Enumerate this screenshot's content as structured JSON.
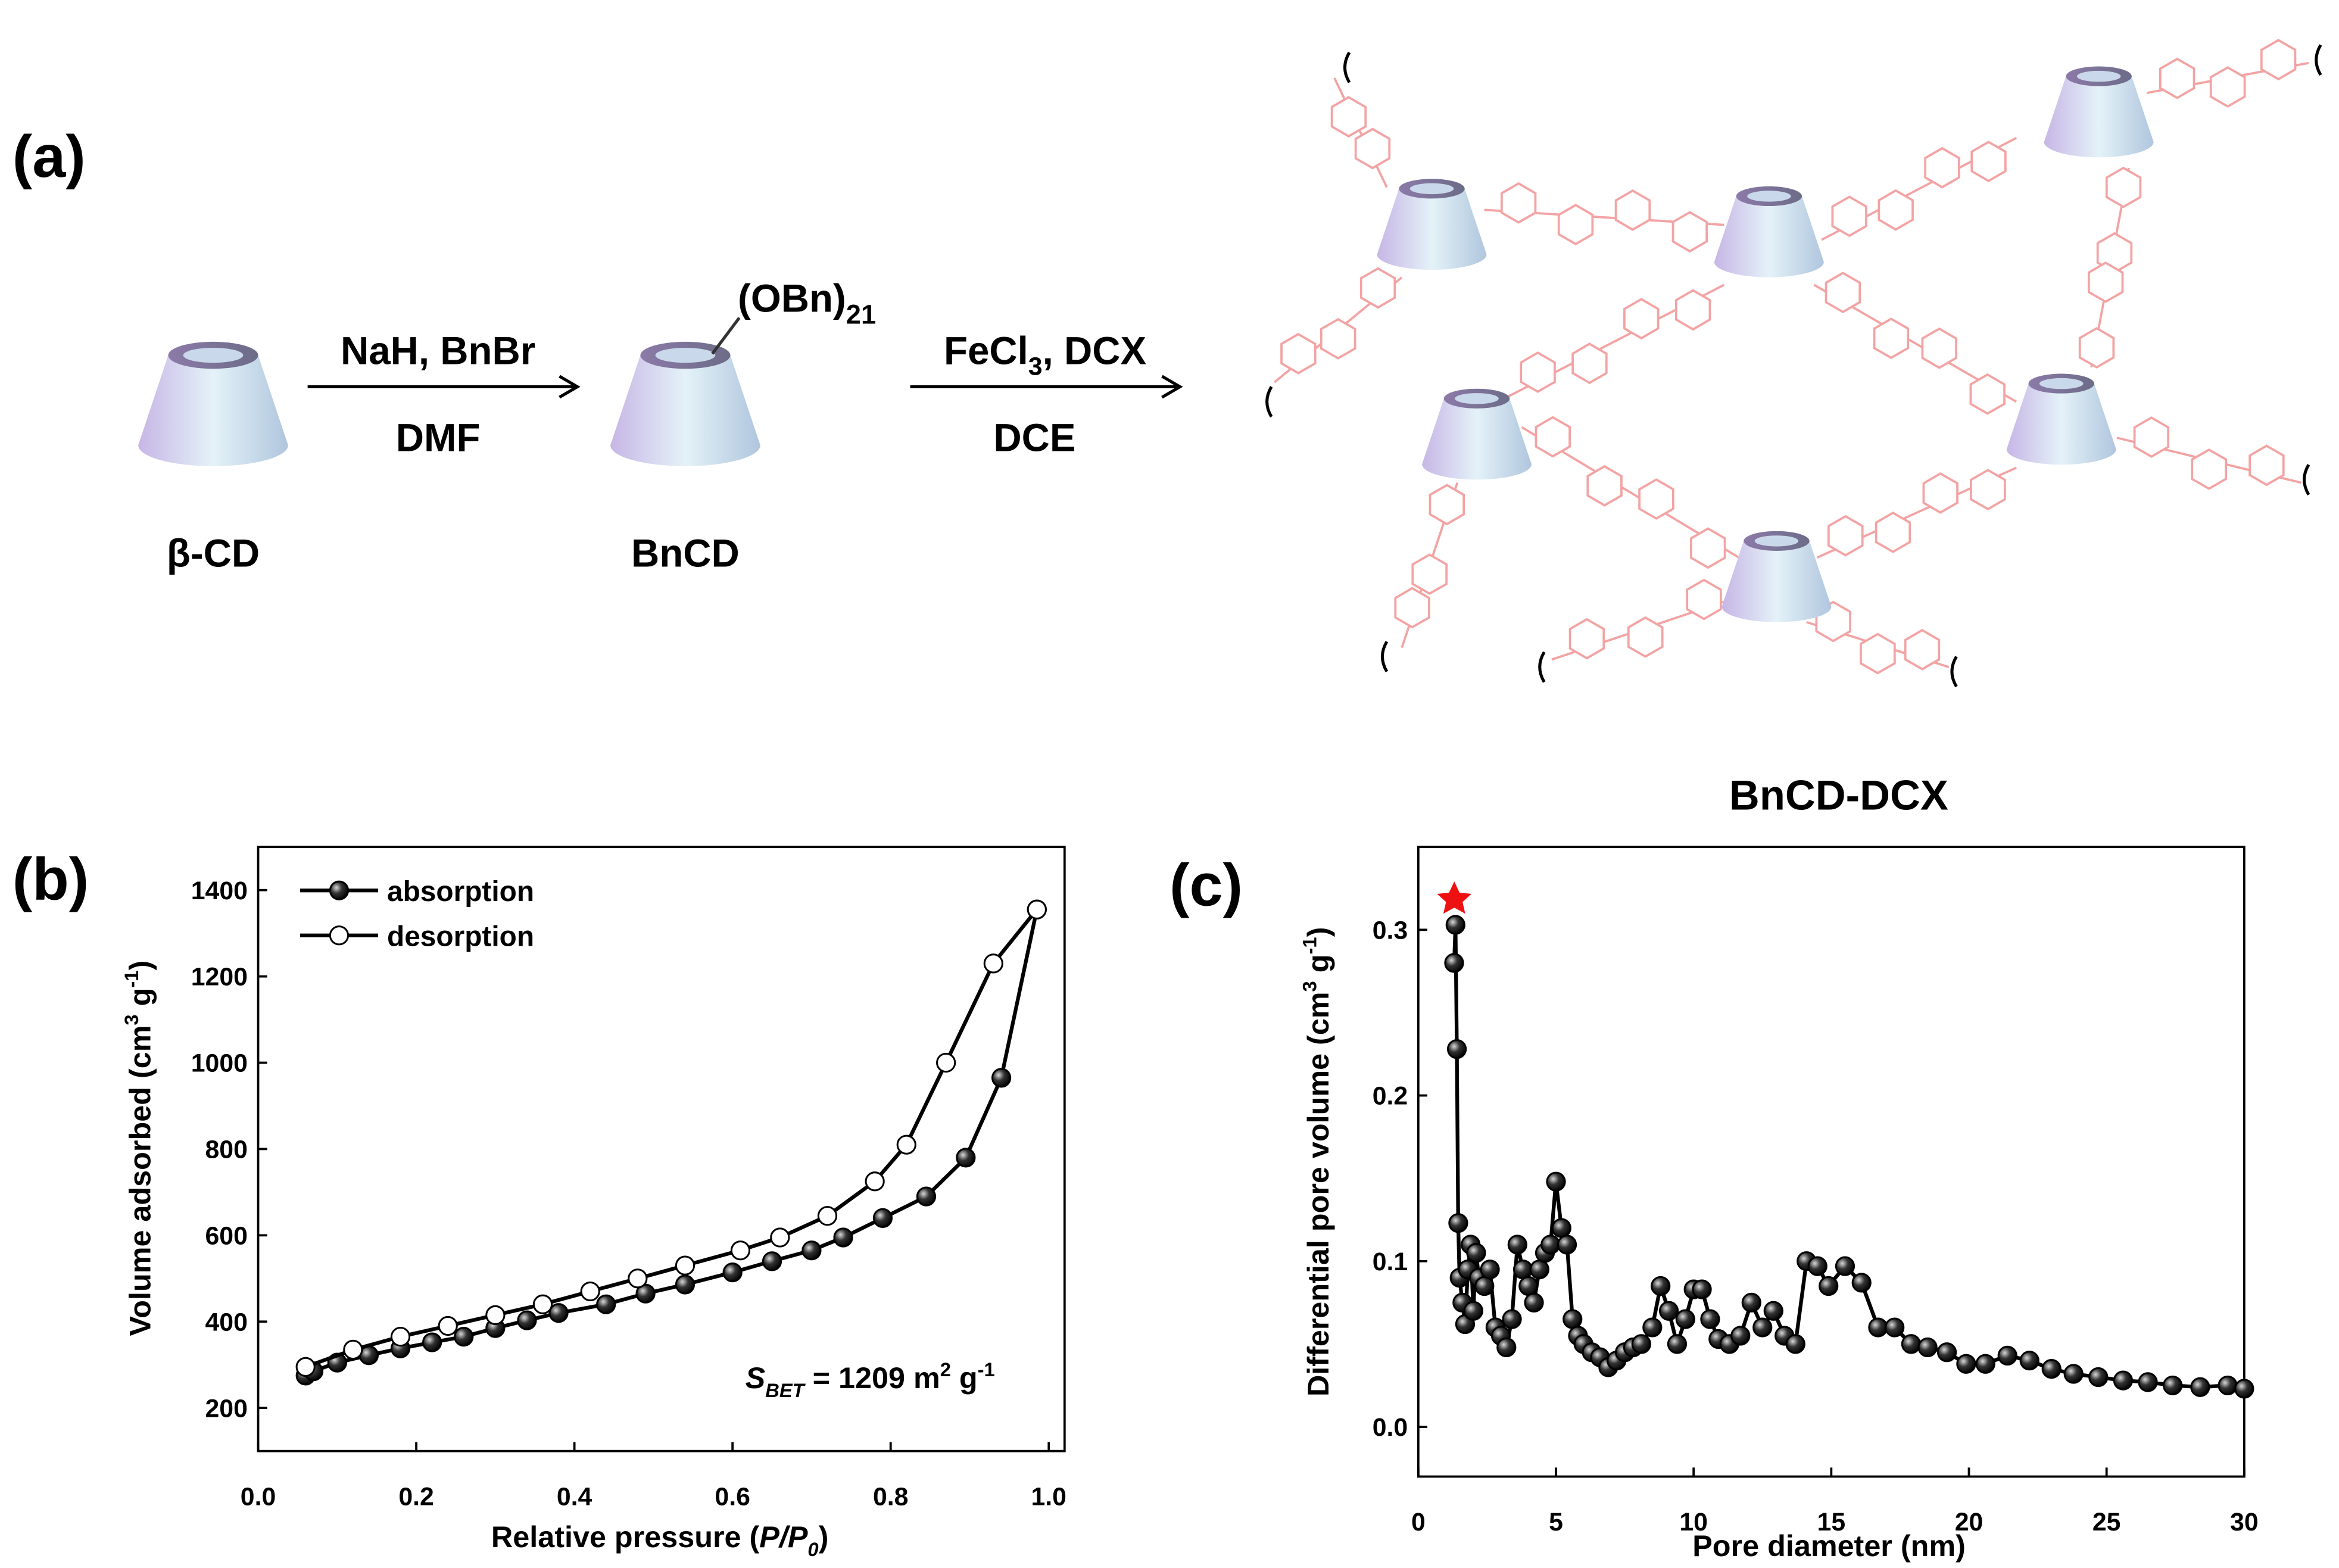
{
  "panel_labels": [
    "(a)",
    "(b)",
    "(c)"
  ],
  "scheme": {
    "reactant": "β-CD",
    "step1_reagents": "NaH, BnBr",
    "step1_solvent": "DMF",
    "intermediate": "BnCD",
    "substituent": [
      "(OBn)",
      "21"
    ],
    "step2_reagents": [
      "FeCl",
      "3",
      ", DCX"
    ],
    "step2_solvent": "DCE"
  },
  "chart_data": [
    {
      "type": "line",
      "xlabel": [
        "Relative pressure (",
        "P",
        "/",
        "P",
        "0",
        ")"
      ],
      "ylabel": [
        "Volume adsorbed (cm",
        "3",
        " g",
        "-1",
        ")"
      ],
      "annotation": [
        "S",
        "BET",
        " = 1209 m",
        "2",
        " g",
        "-1"
      ],
      "xlim": [
        0,
        1.02
      ],
      "ylim": [
        100,
        1500
      ],
      "xticks": [
        {
          "value": 0,
          "label": "0.0"
        },
        0.2,
        0.4,
        0.6,
        0.8,
        {
          "value": 1,
          "label": "1.0"
        }
      ],
      "yticks": [
        200,
        400,
        600,
        800,
        1000,
        1200,
        1400
      ],
      "legend": "upper left",
      "series": [
        {
          "name": "absorption",
          "color": "#000000",
          "marker_fill": "#000000",
          "x": [
            0.06,
            0.07,
            0.1,
            0.14,
            0.18,
            0.22,
            0.26,
            0.3,
            0.34,
            0.38,
            0.44,
            0.49,
            0.54,
            0.6,
            0.65,
            0.7,
            0.74,
            0.79,
            0.845,
            0.895,
            0.94,
            0.985
          ],
          "values": [
            275,
            285,
            305,
            322,
            338,
            352,
            365,
            385,
            403,
            420,
            440,
            465,
            486,
            514,
            540,
            565,
            595,
            640,
            690,
            780,
            965,
            1355
          ]
        },
        {
          "name": "desorption",
          "color": "#000000",
          "marker_fill": "#ffffff",
          "x": [
            0.06,
            0.12,
            0.18,
            0.24,
            0.3,
            0.36,
            0.42,
            0.48,
            0.54,
            0.61,
            0.66,
            0.72,
            0.78,
            0.82,
            0.87,
            0.93,
            0.985
          ],
          "values": [
            295,
            335,
            365,
            390,
            415,
            440,
            470,
            500,
            530,
            565,
            595,
            645,
            725,
            810,
            1000,
            1230,
            1355
          ]
        }
      ]
    },
    {
      "type": "line",
      "title": "BnCD-DCX",
      "xlabel": [
        "Pore diameter (nm)"
      ],
      "ylabel": [
        "Differential pore volume (cm",
        "3",
        " g",
        "-1",
        ")"
      ],
      "xlim": [
        0,
        30
      ],
      "ylim": [
        -0.03,
        0.35
      ],
      "xticks": [
        0,
        5,
        10,
        15,
        20,
        25,
        30
      ],
      "yticks": [
        {
          "value": 0,
          "label": "0.0"
        },
        0.1,
        0.2,
        0.3
      ],
      "series": [
        {
          "color": "#000000",
          "marker_fill": "#000000",
          "x": [
            1.3,
            1.35,
            1.4,
            1.45,
            1.5,
            1.6,
            1.7,
            1.8,
            1.9,
            2.0,
            2.1,
            2.2,
            2.4,
            2.6,
            2.8,
            3.0,
            3.2,
            3.4,
            3.6,
            3.8,
            4.0,
            4.2,
            4.4,
            4.6,
            4.8,
            5.0,
            5.2,
            5.4,
            5.6,
            5.8,
            6.0,
            6.3,
            6.6,
            6.9,
            7.2,
            7.5,
            7.8,
            8.1,
            8.5,
            8.8,
            9.1,
            9.4,
            9.7,
            10.0,
            10.3,
            10.6,
            10.9,
            11.3,
            11.7,
            12.1,
            12.5,
            12.9,
            13.3,
            13.7,
            14.1,
            14.5,
            14.9,
            15.5,
            16.1,
            16.7,
            17.3,
            17.9,
            18.5,
            19.2,
            19.9,
            20.6,
            21.4,
            22.2,
            23.0,
            23.8,
            24.7,
            25.6,
            26.5,
            27.4,
            28.4,
            29.4,
            30
          ],
          "values": [
            0.28,
            0.303,
            0.228,
            0.123,
            0.09,
            0.075,
            0.062,
            0.095,
            0.11,
            0.07,
            0.105,
            0.09,
            0.085,
            0.095,
            0.06,
            0.055,
            0.048,
            0.065,
            0.11,
            0.095,
            0.085,
            0.075,
            0.095,
            0.105,
            0.11,
            0.148,
            0.12,
            0.11,
            0.065,
            0.055,
            0.05,
            0.045,
            0.042,
            0.036,
            0.04,
            0.045,
            0.048,
            0.05,
            0.06,
            0.085,
            0.07,
            0.05,
            0.065,
            0.083,
            0.083,
            0.065,
            0.053,
            0.05,
            0.055,
            0.075,
            0.06,
            0.07,
            0.055,
            0.05,
            0.1,
            0.097,
            0.085,
            0.097,
            0.087,
            0.06,
            0.06,
            0.05,
            0.048,
            0.045,
            0.038,
            0.038,
            0.043,
            0.04,
            0.035,
            0.032,
            0.03,
            0.028,
            0.027,
            0.025,
            0.024,
            0.025,
            0.023
          ]
        }
      ]
    }
  ]
}
